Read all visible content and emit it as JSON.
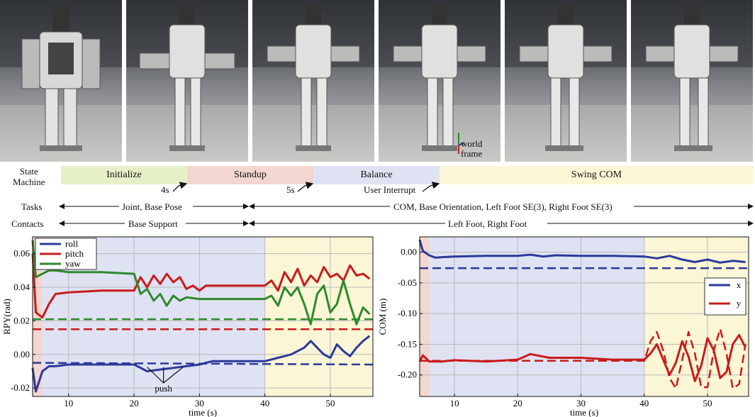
{
  "annotations": {
    "frame": [
      "world",
      "frame"
    ]
  },
  "labels": {
    "state_machine": [
      "State",
      "Machine"
    ],
    "tasks": "Tasks",
    "contacts": "Contacts"
  },
  "states": [
    {
      "name": "Initialize",
      "color": "#e6f0c8"
    },
    {
      "name": "Standup",
      "color": "#f3d6d0"
    },
    {
      "name": "Balance",
      "color": "#dfe2f3"
    },
    {
      "name": "Swing COM",
      "color": "#fbf6d6"
    }
  ],
  "transitions": [
    "4s",
    "5s",
    "User Interrupt"
  ],
  "tasks": [
    "Joint, Base Pose",
    "COM, Base Orientation, Left Foot SE(3), Right Foot SE(3)"
  ],
  "contacts": [
    "Base Support",
    "Left Foot, Right Foot"
  ],
  "chart_data": [
    {
      "type": "line",
      "xlabel": "time (s)",
      "ylabel": "RPY(rad)",
      "xlim": [
        4.5,
        56.5
      ],
      "ylim": [
        -0.025,
        0.07
      ],
      "xticks": [
        10,
        20,
        30,
        40,
        50
      ],
      "yticks": [
        -0.02,
        0.0,
        0.02,
        0.04,
        0.06
      ],
      "ytick_labels": [
        "-0.02",
        "0.00",
        "0.02",
        "0.04",
        "0.06"
      ],
      "grid": true,
      "legend": "top-left",
      "phase_regions": [
        {
          "x": [
            4.5,
            6
          ],
          "color": "#f3d6d0"
        },
        {
          "x": [
            6,
            40
          ],
          "color": "#dfe2f3"
        },
        {
          "x": [
            40,
            56.5
          ],
          "color": "#fbf6d6"
        }
      ],
      "annotation": {
        "text": "push",
        "x": [
          22,
          24.5,
          27.5
        ],
        "y": -0.005
      },
      "series": [
        {
          "name": "roll",
          "color": "#2b3a9a",
          "x": [
            4.5,
            5,
            6,
            7,
            8,
            10,
            15,
            20,
            21,
            22,
            24,
            26,
            28,
            30,
            32,
            35,
            40,
            41,
            42,
            43,
            44,
            45,
            46,
            47,
            48,
            49,
            50,
            51,
            52,
            53,
            54,
            55,
            56
          ],
          "y": [
            -0.008,
            -0.022,
            -0.01,
            -0.007,
            -0.007,
            -0.006,
            -0.006,
            -0.006,
            -0.008,
            -0.01,
            -0.009,
            -0.008,
            -0.007,
            -0.006,
            -0.004,
            -0.004,
            -0.004,
            -0.003,
            -0.002,
            -0.001,
            0.0,
            0.002,
            0.004,
            0.008,
            0.004,
            0.0,
            -0.002,
            0.006,
            0.002,
            -0.001,
            0.004,
            0.008,
            0.011
          ]
        },
        {
          "name": "pitch",
          "color": "#c91b1b",
          "x": [
            4.5,
            5,
            6,
            7,
            8,
            10,
            15,
            20,
            21,
            22,
            23,
            24,
            25,
            26,
            27,
            28,
            29,
            30,
            31,
            32,
            35,
            40,
            41,
            42,
            43,
            44,
            45,
            46,
            47,
            48,
            49,
            50,
            51,
            52,
            53,
            54,
            55,
            56
          ],
          "y": [
            0.06,
            0.025,
            0.022,
            0.03,
            0.036,
            0.037,
            0.038,
            0.038,
            0.046,
            0.04,
            0.047,
            0.042,
            0.048,
            0.043,
            0.046,
            0.039,
            0.041,
            0.038,
            0.041,
            0.041,
            0.041,
            0.041,
            0.044,
            0.038,
            0.049,
            0.043,
            0.051,
            0.041,
            0.047,
            0.043,
            0.052,
            0.046,
            0.048,
            0.044,
            0.053,
            0.047,
            0.048,
            0.045
          ]
        },
        {
          "name": "yaw",
          "color": "#2d8a2d",
          "x": [
            4.5,
            5,
            6,
            7,
            8,
            10,
            15,
            20,
            21,
            22,
            23,
            24,
            25,
            26,
            27,
            28,
            30,
            32,
            35,
            40,
            41,
            42,
            43,
            44,
            45,
            46,
            47,
            48,
            49,
            50,
            51,
            52,
            53,
            54,
            55,
            56
          ],
          "y": [
            0.068,
            0.046,
            0.048,
            0.05,
            0.05,
            0.049,
            0.049,
            0.048,
            0.036,
            0.039,
            0.032,
            0.036,
            0.029,
            0.035,
            0.032,
            0.034,
            0.033,
            0.033,
            0.033,
            0.033,
            0.035,
            0.029,
            0.04,
            0.035,
            0.04,
            0.03,
            0.018,
            0.036,
            0.041,
            0.025,
            0.03,
            0.044,
            0.03,
            0.018,
            0.028,
            0.024
          ]
        },
        {
          "name": "",
          "color": "#2b3a9a",
          "dashed": true,
          "x": [
            4.5,
            56.5
          ],
          "y": [
            -0.005,
            -0.006
          ]
        },
        {
          "name": "",
          "color": "#c91b1b",
          "dashed": true,
          "x": [
            4.5,
            56.5
          ],
          "y": [
            0.015,
            0.015
          ]
        },
        {
          "name": "",
          "color": "#2d8a2d",
          "dashed": true,
          "x": [
            4.5,
            56.5
          ],
          "y": [
            0.021,
            0.021
          ]
        }
      ]
    },
    {
      "type": "line",
      "xlabel": "time (s)",
      "ylabel": "COM (m)",
      "xlim": [
        4.5,
        56.5
      ],
      "ylim": [
        -0.235,
        0.025
      ],
      "xticks": [
        10,
        20,
        30,
        40,
        50
      ],
      "yticks": [
        0.0,
        -0.05,
        -0.1,
        -0.15,
        -0.2
      ],
      "ytick_labels": [
        "0.00",
        "-0.05",
        "-0.10",
        "-0.15",
        "-0.20"
      ],
      "grid": true,
      "legend": "right",
      "phase_regions": [
        {
          "x": [
            4.5,
            6
          ],
          "color": "#f3d6d0"
        },
        {
          "x": [
            6,
            40
          ],
          "color": "#dfe2f3"
        },
        {
          "x": [
            40,
            56.5
          ],
          "color": "#fbf6d6"
        }
      ],
      "series": [
        {
          "name": "x",
          "color": "#2b3a9a",
          "x": [
            4.5,
            5,
            6,
            7,
            8,
            10,
            15,
            20,
            22,
            24,
            26,
            30,
            35,
            40,
            42,
            44,
            46,
            48,
            50,
            52,
            54,
            56
          ],
          "y": [
            0.02,
            0.002,
            -0.005,
            -0.009,
            -0.008,
            -0.007,
            -0.006,
            -0.006,
            -0.004,
            -0.007,
            -0.005,
            -0.006,
            -0.006,
            -0.007,
            -0.01,
            -0.006,
            -0.012,
            -0.016,
            -0.012,
            -0.017,
            -0.014,
            -0.016
          ]
        },
        {
          "name": "y",
          "color": "#c91b1b",
          "x": [
            4.5,
            5,
            6,
            8,
            10,
            15,
            20,
            22,
            25,
            30,
            35,
            40,
            41,
            42,
            43,
            44,
            45,
            46,
            47,
            48,
            49,
            50,
            51,
            52,
            53,
            54,
            55,
            56
          ],
          "y": [
            -0.178,
            -0.168,
            -0.178,
            -0.178,
            -0.176,
            -0.178,
            -0.175,
            -0.166,
            -0.172,
            -0.172,
            -0.175,
            -0.175,
            -0.165,
            -0.15,
            -0.175,
            -0.2,
            -0.18,
            -0.145,
            -0.17,
            -0.21,
            -0.185,
            -0.14,
            -0.16,
            -0.205,
            -0.195,
            -0.15,
            -0.135,
            -0.155
          ]
        },
        {
          "name": "",
          "color": "#2b3a9a",
          "dashed": true,
          "x": [
            4.5,
            56.5
          ],
          "y": [
            -0.026,
            -0.026
          ]
        },
        {
          "name": "",
          "color": "#c91b1b",
          "dashed": true,
          "x": [
            4.5,
            40,
            41,
            42,
            43,
            44,
            45,
            46,
            47,
            48,
            49,
            50,
            51,
            52,
            53,
            54,
            55,
            56
          ],
          "y": [
            -0.177,
            -0.177,
            -0.145,
            -0.13,
            -0.16,
            -0.205,
            -0.222,
            -0.175,
            -0.13,
            -0.165,
            -0.22,
            -0.22,
            -0.16,
            -0.125,
            -0.165,
            -0.222,
            -0.215,
            -0.15
          ]
        }
      ]
    }
  ]
}
